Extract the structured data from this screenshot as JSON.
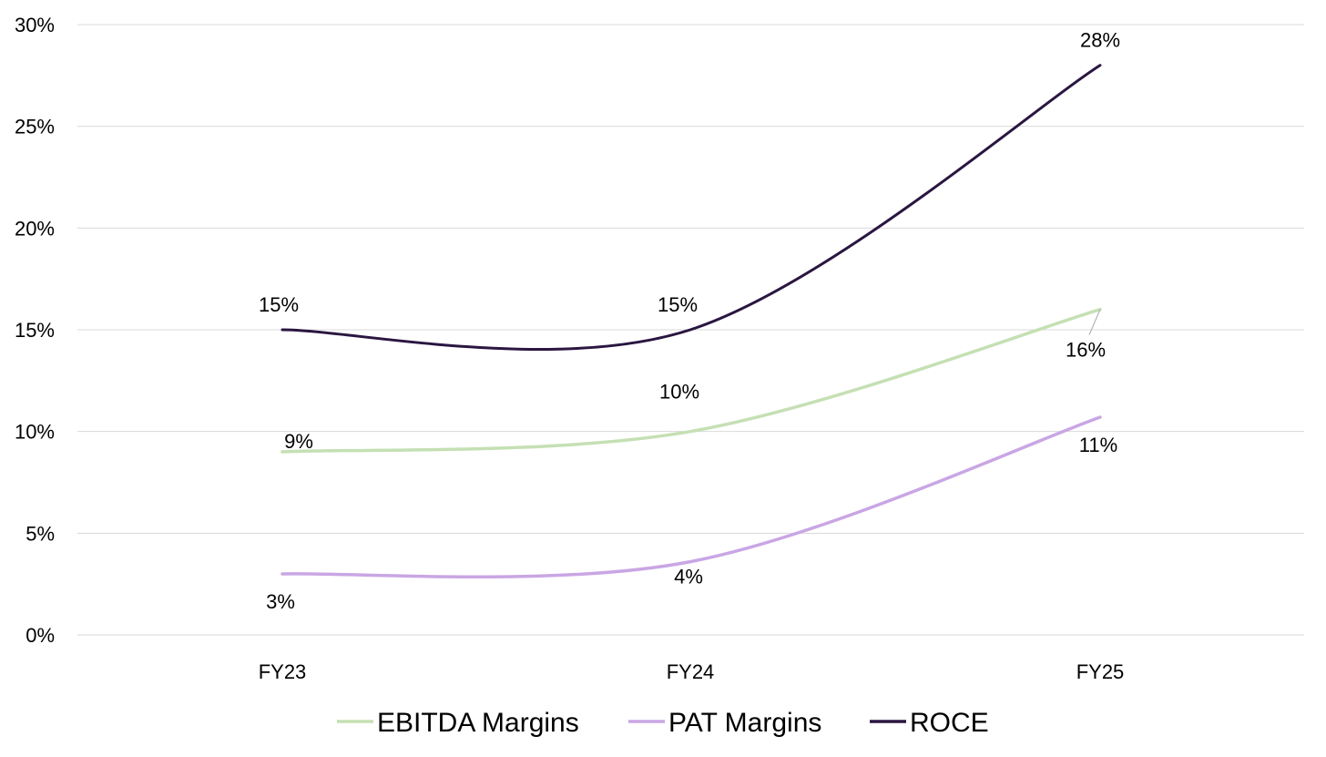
{
  "chart_data": {
    "type": "line",
    "title": "",
    "xlabel": "",
    "ylabel": "",
    "categories": [
      "FY23",
      "FY24",
      "FY25"
    ],
    "ylim": [
      0,
      30
    ],
    "yticks": [
      0,
      5,
      10,
      15,
      20,
      25,
      30
    ],
    "y_tick_labels": [
      "0%",
      "5%",
      "10%",
      "15%",
      "20%",
      "25%",
      "30%"
    ],
    "grid": "horizontal",
    "legend_position": "bottom",
    "smooth": true,
    "series": [
      {
        "name": "EBITDA Margins",
        "values": [
          9,
          10,
          16
        ],
        "labels": [
          "9%",
          "10%",
          "16%"
        ],
        "color": "#c5e0b4"
      },
      {
        "name": "PAT Margins",
        "values": [
          3,
          3.6,
          10.7
        ],
        "labels": [
          "3%",
          "4%",
          "11%"
        ],
        "color": "#c9a6e4"
      },
      {
        "name": "ROCE",
        "values": [
          15,
          15,
          28
        ],
        "labels": [
          "15%",
          "15%",
          "28%"
        ],
        "color": "#2a1640"
      }
    ]
  }
}
